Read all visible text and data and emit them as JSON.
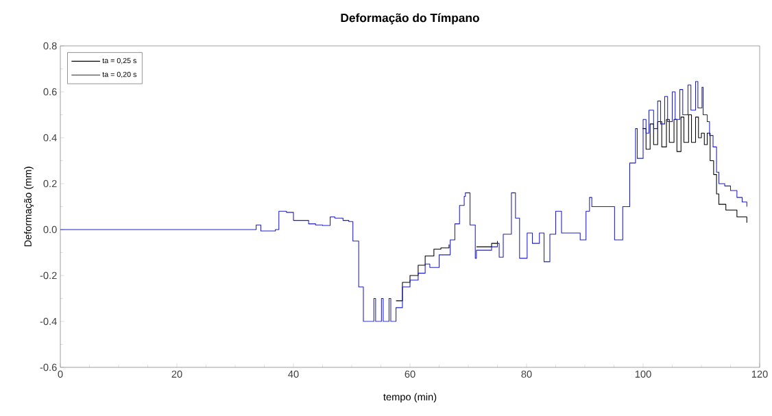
{
  "chart_data": {
    "type": "step",
    "title": "Deformação do Tímpano",
    "xlabel": "tempo (min)",
    "ylabel": "Deformação (mm)",
    "xlim": [
      0,
      120
    ],
    "xticks": [
      0,
      20,
      40,
      60,
      80,
      100,
      120
    ],
    "ylim": [
      -0.6,
      0.8
    ],
    "yticks": [
      -0.6,
      -0.4,
      -0.2,
      {
        "value": 0,
        "label": "0.0"
      },
      0.2,
      0.4,
      0.6,
      0.8
    ],
    "grid": false,
    "legend": "top left",
    "marker": "none",
    "line_style": "solid",
    "series": [
      {
        "name": "ta = 0,25 s",
        "color": "#000000",
        "x": [
          57.6,
          58.7,
          60,
          61.4,
          62.6,
          64.1,
          65.3,
          66.7,
          66.9,
          67.7,
          68.5,
          69.3,
          69.5,
          70.3,
          71.2,
          71.4,
          74,
          75,
          75.3,
          76,
          77.4,
          78.1,
          78.8,
          80.1,
          81,
          82.2,
          83,
          84,
          85,
          86,
          88.9,
          89.2,
          90.2,
          90.8,
          91.2,
          94.5,
          95.1,
          96.5,
          97.7,
          98.7,
          99,
          99.9,
          100.5,
          101.2,
          101.8,
          102.5,
          103.2,
          104,
          104.5,
          105.3,
          105.8,
          106.5,
          107,
          107.8,
          108.3,
          109,
          109.5,
          110,
          110.5,
          111,
          111.5,
          112.1,
          112.6,
          113,
          114.2,
          116.1,
          117.8
        ],
        "values": [
          -0.31,
          -0.23,
          -0.2,
          -0.155,
          -0.115,
          -0.085,
          -0.08,
          -0.065,
          null,
          null,
          null,
          null,
          null,
          null,
          null,
          -0.075,
          -0.06,
          -0.05,
          null,
          null,
          null,
          null,
          null,
          null,
          null,
          null,
          null,
          null,
          null,
          null,
          null,
          null,
          null,
          null,
          null,
          null,
          null,
          null,
          null,
          null,
          null,
          0.44,
          0.35,
          0.46,
          0.37,
          0.47,
          0.36,
          0.48,
          0.38,
          0.48,
          0.34,
          0.49,
          0.38,
          0.5,
          0.38,
          0.49,
          0.4,
          0.42,
          0.37,
          0.42,
          0.3,
          0.24,
          0.155,
          0.11,
          0.085,
          0.055,
          0.03
        ]
      },
      {
        "name": "ta = 0,20 s",
        "color": "#1c1cc8",
        "x": [
          0,
          33.6,
          34.4,
          36.9,
          37.5,
          38.8,
          40,
          41.4,
          42.6,
          43.8,
          45,
          46.3,
          47.1,
          48.5,
          49.5,
          50.2,
          51.2,
          52,
          53.8,
          54.1,
          55.1,
          55.4,
          56.4,
          56.7,
          57.6,
          58.7,
          60,
          61.4,
          62.6,
          63.4,
          65,
          66.7,
          66.9,
          67.7,
          68.5,
          69.3,
          69.5,
          70.3,
          71.2,
          71.4,
          74,
          75,
          75.3,
          76,
          77.4,
          78.1,
          78.8,
          80.1,
          81,
          82.2,
          83,
          84,
          85,
          86,
          88.9,
          89.2,
          90.2,
          90.8,
          91.2,
          94.5,
          95.1,
          96.5,
          97.7,
          98.7,
          99,
          100,
          100.5,
          101,
          101.8,
          102.5,
          103,
          103.7,
          104.2,
          105,
          105.5,
          106.3,
          106.8,
          107.7,
          108.2,
          109,
          109.4,
          110.1,
          110.3,
          111,
          111.4,
          112,
          112.6,
          113,
          114,
          115,
          116.1,
          117,
          117.8
        ],
        "values": [
          0,
          0.02,
          -0.006,
          0,
          0.08,
          0.075,
          0.04,
          0.04,
          0.025,
          0.02,
          0.018,
          0.055,
          0.05,
          0.04,
          0.035,
          -0.05,
          -0.25,
          -0.4,
          -0.3,
          -0.4,
          -0.3,
          -0.4,
          -0.3,
          -0.4,
          -0.34,
          -0.25,
          -0.22,
          -0.19,
          -0.15,
          -0.165,
          -0.11,
          -0.11,
          -0.045,
          0.025,
          0.105,
          0.145,
          0.16,
          0.02,
          -0.125,
          -0.09,
          -0.075,
          -0.06,
          -0.12,
          -0.02,
          0.16,
          0.05,
          -0.125,
          -0.015,
          -0.06,
          -0.015,
          -0.14,
          -0.02,
          0.08,
          -0.015,
          -0.015,
          -0.045,
          0.08,
          0.14,
          0.1,
          0.1,
          -0.045,
          0.1,
          0.29,
          0.44,
          0.31,
          0.48,
          0.42,
          0.52,
          0.44,
          0.56,
          0.46,
          0.58,
          0.47,
          0.6,
          0.48,
          0.61,
          0.5,
          0.63,
          0.52,
          0.645,
          0.53,
          0.62,
          0.5,
          0.47,
          0.41,
          0.36,
          0.25,
          0.2,
          0.19,
          0.17,
          0.14,
          0.12,
          0.1
        ]
      }
    ]
  }
}
